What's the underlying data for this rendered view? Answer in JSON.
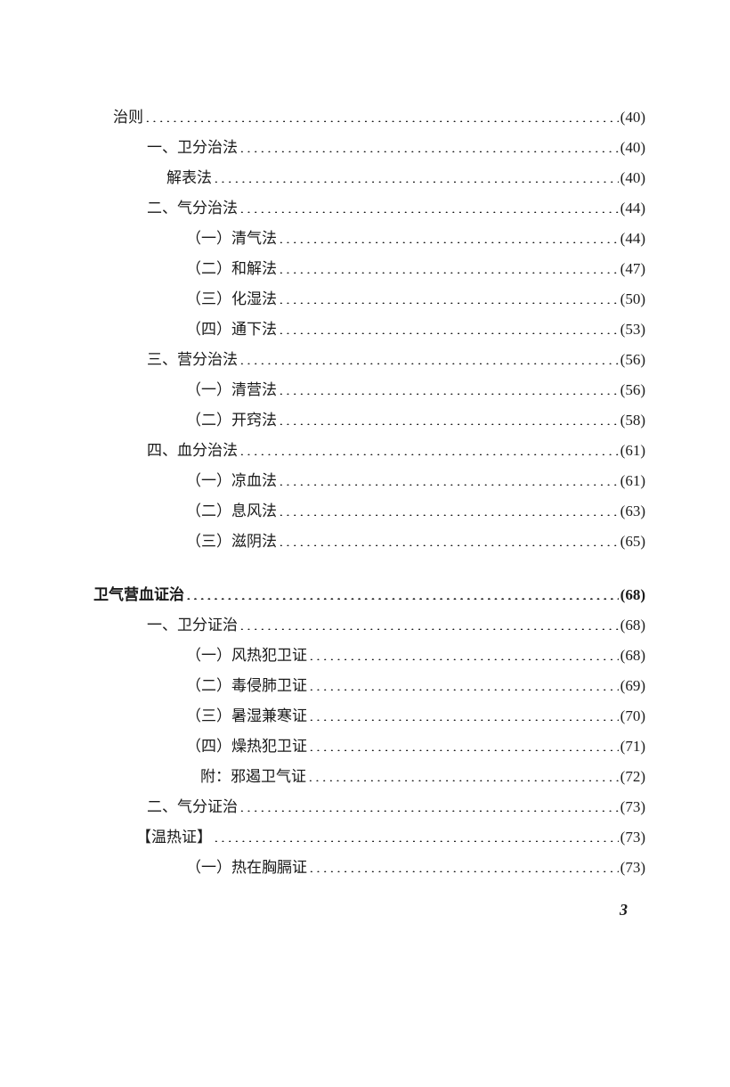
{
  "entries": [
    {
      "label": "治则",
      "page": "(40)",
      "level": "level-0",
      "bold": false
    },
    {
      "label": "一、卫分治法",
      "page": "(40)",
      "level": "level-1",
      "bold": false
    },
    {
      "label": "解表法",
      "page": "(40)",
      "level": "level-2",
      "bold": false
    },
    {
      "label": "二、气分治法",
      "page": "(44)",
      "level": "level-1",
      "bold": false
    },
    {
      "label": "（一）清气法",
      "page": "(44)",
      "level": "level-3",
      "bold": false
    },
    {
      "label": "（二）和解法",
      "page": "(47)",
      "level": "level-3",
      "bold": false
    },
    {
      "label": "（三）化湿法",
      "page": "(50)",
      "level": "level-3",
      "bold": false
    },
    {
      "label": "（四）通下法",
      "page": "(53)",
      "level": "level-3",
      "bold": false
    },
    {
      "label": "三、营分治法",
      "page": "(56)",
      "level": "level-1",
      "bold": false
    },
    {
      "label": "（一）清营法",
      "page": "(56)",
      "level": "level-3",
      "bold": false
    },
    {
      "label": "（二）开窍法",
      "page": "(58)",
      "level": "level-3",
      "bold": false
    },
    {
      "label": "四、血分治法",
      "page": "(61)",
      "level": "level-1",
      "bold": false
    },
    {
      "label": "（一）凉血法",
      "page": "(61)",
      "level": "level-3",
      "bold": false
    },
    {
      "label": "（二）息风法",
      "page": "(63)",
      "level": "level-3",
      "bold": false
    },
    {
      "label": "（三）滋阴法",
      "page": "(65)",
      "level": "level-3",
      "bold": false
    },
    {
      "label": "GAP",
      "page": "",
      "level": "section-gap",
      "bold": false
    },
    {
      "label": "卫气营血证治",
      "page": "(68)",
      "level": "level-section",
      "bold": true
    },
    {
      "label": "一、卫分证治",
      "page": "(68)",
      "level": "level-1",
      "bold": false
    },
    {
      "label": "（一）风热犯卫证",
      "page": "(68)",
      "level": "level-3",
      "bold": false
    },
    {
      "label": "（二）毒侵肺卫证",
      "page": "(69)",
      "level": "level-3",
      "bold": false
    },
    {
      "label": "（三）暑湿兼寒证",
      "page": "(70)",
      "level": "level-3",
      "bold": false
    },
    {
      "label": "（四）燥热犯卫证",
      "page": "(71)",
      "level": "level-3",
      "bold": false
    },
    {
      "label": "附：邪遏卫气证",
      "page": "(72)",
      "level": "level-3-fu",
      "bold": false
    },
    {
      "label": "二、气分证治",
      "page": "(73)",
      "level": "level-1",
      "bold": false
    },
    {
      "label": "【温热证】",
      "page": "(73)",
      "level": "level-bracket",
      "bold": false
    },
    {
      "label": "（一）热在胸膈证",
      "page": "(73)",
      "level": "level-3",
      "bold": false
    }
  ],
  "footer": "3"
}
